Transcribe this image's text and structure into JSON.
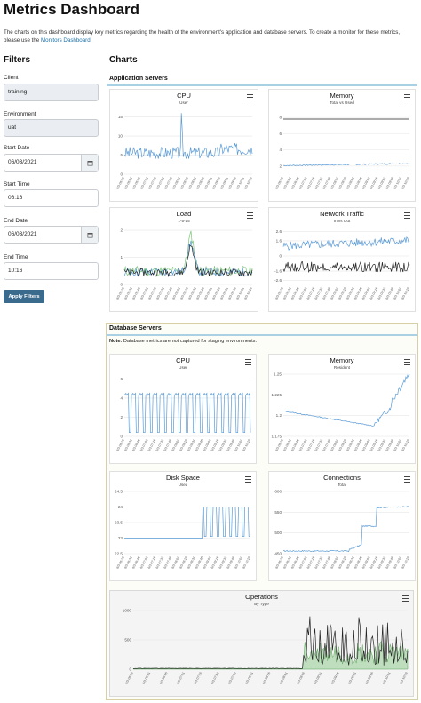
{
  "page": {
    "title": "Metrics Dashboard",
    "intro_text": "The charts on this dashboard display key metrics regarding the health of the environment's application and database servers. To create a monitor for these metrics, please use the ",
    "intro_link": "Monitors Dashboard"
  },
  "filters": {
    "heading": "Filters",
    "client_label": "Client",
    "client_value": "training",
    "environment_label": "Environment",
    "environment_value": "uat",
    "start_date_label": "Start Date",
    "start_date_value": "06/03/2021",
    "start_time_label": "Start Time",
    "start_time_value": "06:16",
    "end_date_label": "End Date",
    "end_date_value": "06/03/2021",
    "end_time_label": "End Time",
    "end_time_value": "10:16",
    "apply_label": "Apply Filters"
  },
  "charts_heading": "Charts",
  "sections": {
    "app_title": "Application Servers",
    "db_title": "Database Servers",
    "db_note_bold": "Note:",
    "db_note_text": " Database metrics are not captured for staging environments."
  },
  "charts": {
    "app_cpu": {
      "title": "CPU",
      "subtitle": "User",
      "yticks": [
        "0",
        "5",
        "10",
        "15"
      ],
      "ylim": [
        0,
        17
      ]
    },
    "app_mem": {
      "title": "Memory",
      "subtitle": "Total vs Used",
      "yticks": [
        "2",
        "4",
        "6",
        "8"
      ],
      "ylim": [
        1,
        9
      ]
    },
    "app_load": {
      "title": "Load",
      "subtitle": "1-5-15",
      "yticks": [
        "0",
        "1",
        "2"
      ],
      "ylim": [
        0,
        2.1
      ]
    },
    "app_net": {
      "title": "Network Traffic",
      "subtitle": "In vs Out",
      "yticks": [
        "-2.6",
        "-1.6",
        "0",
        "1.6",
        "2.6"
      ],
      "ylim": [
        -3,
        3
      ]
    },
    "db_cpu": {
      "title": "CPU",
      "subtitle": "User",
      "yticks": [
        "0",
        "2",
        "4",
        "6"
      ],
      "ylim": [
        0,
        6.5
      ]
    },
    "db_mem": {
      "title": "Memory",
      "subtitle": "Resident",
      "yticks": [
        "1.175",
        "1.2",
        "1.225",
        "1.25"
      ],
      "ylim": [
        1.175,
        1.25
      ]
    },
    "db_disk": {
      "title": "Disk Space",
      "subtitle": "Used",
      "yticks": [
        "22.5",
        "23",
        "23.5",
        "24",
        "24.5"
      ],
      "ylim": [
        22.5,
        24.5
      ]
    },
    "db_conn": {
      "title": "Connections",
      "subtitle": "Total",
      "yticks": [
        "450",
        "500",
        "550",
        "600"
      ],
      "ylim": [
        450,
        600
      ]
    },
    "db_ops": {
      "title": "Operations",
      "subtitle": "By Type",
      "yticks": [
        "0",
        "500",
        "1000"
      ],
      "ylim": [
        0,
        1000
      ]
    }
  },
  "x_ticks": [
    "6/3 06:16",
    "6/3 06:31",
    "6/3 06:46",
    "6/3 07:01",
    "6/3 07:16",
    "6/3 07:31",
    "6/3 07:46",
    "6/3 08:01",
    "6/3 08:16",
    "6/3 08:31",
    "6/3 08:46",
    "6/3 09:01",
    "6/3 09:16",
    "6/3 09:31",
    "6/3 09:46",
    "6/3 10:01",
    "6/3 10:16"
  ],
  "icons": {
    "menu": "hamburger-menu-icon",
    "calendar": "calendar-icon"
  },
  "colors": {
    "series_blue": "#5b9bd5",
    "series_black": "#222222",
    "series_green": "#7cc47a",
    "button": "#3a6b8c",
    "section_line": "#a9d1e3"
  }
}
